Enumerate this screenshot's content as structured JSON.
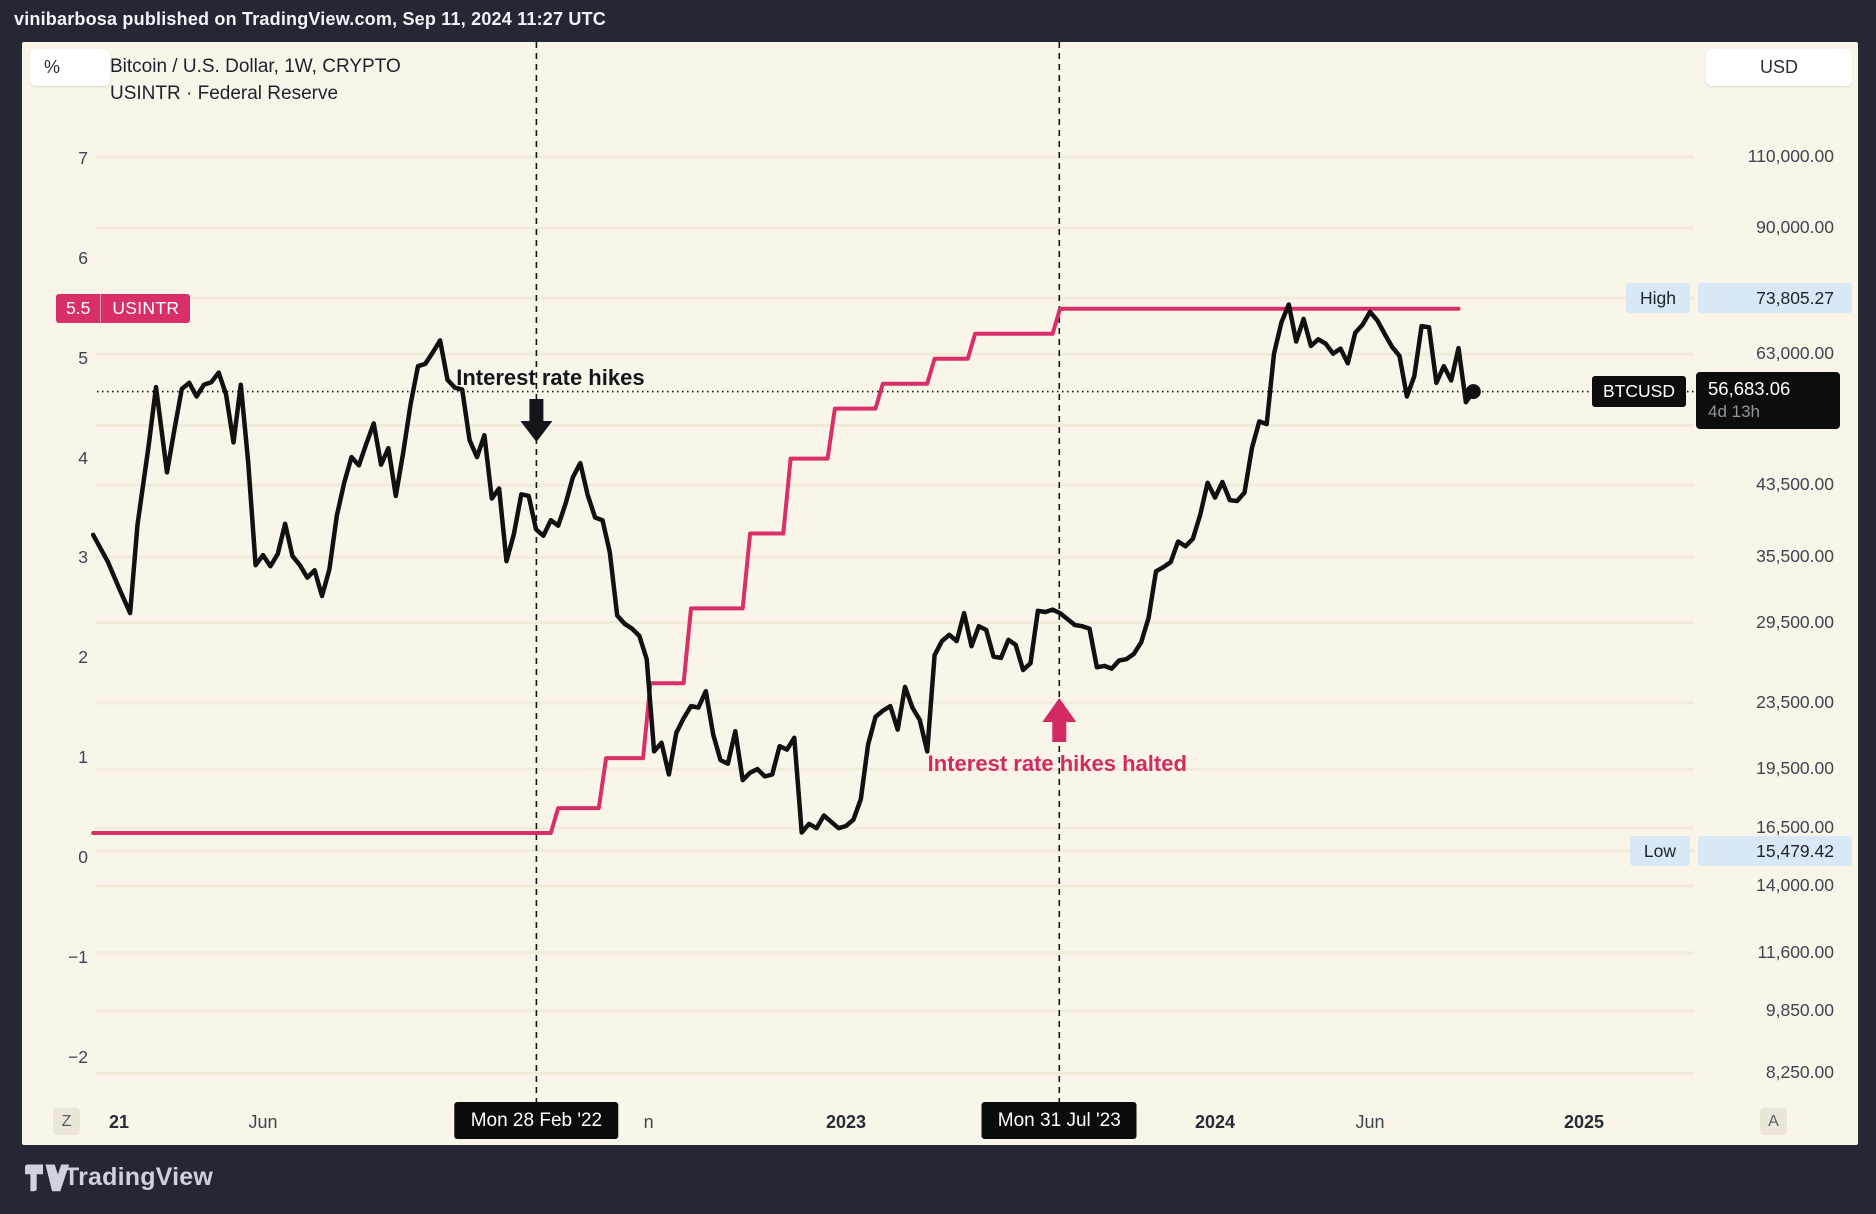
{
  "top_bar": {
    "text": "vinibarbosa published on TradingView.com, Sep 11, 2024 11:27 UTC"
  },
  "header": {
    "unit_left": "%",
    "unit_right": "USD",
    "title_line1": "Bitcoin / U.S. Dollar, 1W, CRYPTO",
    "title_line2": "USINTR · Federal Reserve"
  },
  "badges": {
    "usintr_value": "5.5",
    "usintr_label": "USINTR",
    "high_label": "High",
    "high_value": "73,805.27",
    "low_label": "Low",
    "low_value": "15,479.42",
    "btc_symbol": "BTCUSD",
    "btc_price": "56,683.06",
    "btc_countdown": "4d 13h"
  },
  "annotations": {
    "hikes": "Interest rate hikes",
    "halted": "Interest rate hikes halted"
  },
  "left_axis": {
    "unit": "%",
    "ticks": [
      {
        "label": "7",
        "value": 7
      },
      {
        "label": "6",
        "value": 6
      },
      {
        "label": "5",
        "value": 5
      },
      {
        "label": "4",
        "value": 4
      },
      {
        "label": "3",
        "value": 3
      },
      {
        "label": "2",
        "value": 2
      },
      {
        "label": "1",
        "value": 1
      },
      {
        "label": "0",
        "value": 0
      },
      {
        "label": "−1",
        "value": -1
      },
      {
        "label": "−2",
        "value": -2
      }
    ]
  },
  "right_axis": {
    "unit": "USD",
    "ticks": [
      {
        "label": "110,000.00",
        "value": 110000
      },
      {
        "label": "90,000.00",
        "value": 90000
      },
      {
        "label": "63,000.00",
        "value": 63000
      },
      {
        "label": "43,500.00",
        "value": 43500
      },
      {
        "label": "35,500.00",
        "value": 35500
      },
      {
        "label": "29,500.00",
        "value": 29500
      },
      {
        "label": "23,500.00",
        "value": 23500
      },
      {
        "label": "19,500.00",
        "value": 19500
      },
      {
        "label": "16,500.00",
        "value": 16500
      },
      {
        "label": "14,000.00",
        "value": 14000
      },
      {
        "label": "11,600.00",
        "value": 11600
      },
      {
        "label": "9,850.00",
        "value": 9850
      },
      {
        "label": "8,250.00",
        "value": 8250
      }
    ],
    "hidden_grid_values": [
      51500
    ]
  },
  "time_axis": {
    "left_button": "Z",
    "right_button": "A",
    "labels": [
      {
        "text": "21",
        "t": 2021.03,
        "bold": true
      },
      {
        "text": "Jun",
        "t": 2021.42,
        "bold": false
      },
      {
        "text": "n",
        "t": 2022.465,
        "bold": false
      },
      {
        "text": "2023",
        "t": 2023.0,
        "bold": true
      },
      {
        "text": "2024",
        "t": 2024.0,
        "bold": true
      },
      {
        "text": "Jun",
        "t": 2024.42,
        "bold": false
      },
      {
        "text": "2025",
        "t": 2025.0,
        "bold": true
      }
    ]
  },
  "footer": {
    "brand": "TradingView"
  },
  "colors": {
    "background_dark": "#232834",
    "chart_cream": "#faf5e9",
    "gridline": "#f2ebd9",
    "btc_line": "#111111",
    "rate_pink": "#d92f68",
    "annotation_pink": "#d42a63",
    "highlow_bg": "#d9e8f5",
    "badge_black": "#0d0d0d"
  },
  "chart_data": {
    "type": "line",
    "title": "Bitcoin / U.S. Dollar, 1W, CRYPTO with USINTR · Federal Reserve",
    "x_axis": {
      "label": "time",
      "range_decimal_years": [
        2020.96,
        2025.5
      ]
    },
    "y_left": {
      "label": "%",
      "range": [
        -2.5,
        7.5
      ],
      "scale": "linear"
    },
    "y_right": {
      "label": "USD",
      "scale": "log",
      "visible_range_approx": [
        7000,
        130000
      ]
    },
    "key_levels": {
      "high": 73805.27,
      "low": 15479.42,
      "current_price": 56683.06,
      "current_rate": 5.5
    },
    "events": [
      {
        "t": 2022.161,
        "date_label": "Mon 28 Feb '22",
        "annotation": "Interest rate hikes",
        "arrow": "down",
        "color": "black"
      },
      {
        "t": 2023.578,
        "date_label": "Mon 31 Jul '23",
        "annotation": "Interest rate hikes halted",
        "arrow": "up",
        "color": "pink"
      }
    ],
    "series": [
      {
        "name": "BTCUSD weekly close",
        "color": "#111111",
        "points": [
          [
            2020.96,
            37800
          ],
          [
            2021.0,
            35000
          ],
          [
            2021.03,
            32500
          ],
          [
            2021.06,
            30300
          ],
          [
            2021.08,
            38900
          ],
          [
            2021.11,
            48600
          ],
          [
            2021.13,
            57400
          ],
          [
            2021.16,
            45100
          ],
          [
            2021.18,
            50900
          ],
          [
            2021.2,
            57100
          ],
          [
            2021.22,
            58100
          ],
          [
            2021.24,
            55900
          ],
          [
            2021.26,
            57800
          ],
          [
            2021.28,
            58200
          ],
          [
            2021.3,
            59800
          ],
          [
            2021.32,
            56200
          ],
          [
            2021.34,
            49100
          ],
          [
            2021.36,
            57800
          ],
          [
            2021.38,
            46400
          ],
          [
            2021.4,
            34700
          ],
          [
            2021.42,
            35700
          ],
          [
            2021.44,
            34600
          ],
          [
            2021.46,
            35800
          ],
          [
            2021.48,
            39000
          ],
          [
            2021.5,
            35600
          ],
          [
            2021.52,
            34700
          ],
          [
            2021.54,
            33500
          ],
          [
            2021.56,
            34200
          ],
          [
            2021.58,
            31800
          ],
          [
            2021.6,
            34300
          ],
          [
            2021.62,
            39900
          ],
          [
            2021.64,
            43800
          ],
          [
            2021.66,
            47100
          ],
          [
            2021.68,
            46000
          ],
          [
            2021.7,
            48900
          ],
          [
            2021.72,
            51800
          ],
          [
            2021.74,
            46100
          ],
          [
            2021.76,
            48300
          ],
          [
            2021.78,
            42200
          ],
          [
            2021.8,
            47700
          ],
          [
            2021.82,
            54700
          ],
          [
            2021.84,
            60900
          ],
          [
            2021.86,
            61300
          ],
          [
            2021.88,
            63300
          ],
          [
            2021.9,
            65500
          ],
          [
            2021.92,
            58600
          ],
          [
            2021.94,
            57300
          ],
          [
            2021.96,
            57000
          ],
          [
            2021.98,
            49400
          ],
          [
            2022.0,
            47100
          ],
          [
            2022.02,
            50100
          ],
          [
            2022.04,
            41900
          ],
          [
            2022.06,
            43100
          ],
          [
            2022.08,
            35100
          ],
          [
            2022.1,
            37900
          ],
          [
            2022.12,
            42400
          ],
          [
            2022.14,
            42200
          ],
          [
            2022.16,
            38400
          ],
          [
            2022.18,
            37700
          ],
          [
            2022.2,
            39400
          ],
          [
            2022.22,
            38800
          ],
          [
            2022.24,
            41300
          ],
          [
            2022.26,
            44500
          ],
          [
            2022.28,
            46300
          ],
          [
            2022.3,
            42300
          ],
          [
            2022.32,
            39700
          ],
          [
            2022.34,
            39400
          ],
          [
            2022.36,
            36000
          ],
          [
            2022.38,
            30100
          ],
          [
            2022.4,
            29400
          ],
          [
            2022.42,
            29000
          ],
          [
            2022.44,
            28400
          ],
          [
            2022.46,
            26600
          ],
          [
            2022.48,
            20500
          ],
          [
            2022.5,
            21000
          ],
          [
            2022.52,
            19200
          ],
          [
            2022.54,
            21600
          ],
          [
            2022.56,
            22500
          ],
          [
            2022.58,
            23300
          ],
          [
            2022.6,
            23200
          ],
          [
            2022.62,
            24300
          ],
          [
            2022.64,
            21500
          ],
          [
            2022.66,
            20000
          ],
          [
            2022.68,
            19800
          ],
          [
            2022.7,
            21700
          ],
          [
            2022.72,
            18900
          ],
          [
            2022.74,
            19300
          ],
          [
            2022.76,
            19500
          ],
          [
            2022.78,
            19100
          ],
          [
            2022.8,
            19200
          ],
          [
            2022.82,
            20800
          ],
          [
            2022.84,
            20600
          ],
          [
            2022.86,
            21300
          ],
          [
            2022.88,
            16300
          ],
          [
            2022.9,
            16700
          ],
          [
            2022.92,
            16500
          ],
          [
            2022.94,
            17100
          ],
          [
            2022.96,
            16800
          ],
          [
            2022.98,
            16500
          ],
          [
            2023.0,
            16600
          ],
          [
            2023.02,
            16900
          ],
          [
            2023.04,
            17900
          ],
          [
            2023.06,
            20900
          ],
          [
            2023.08,
            22600
          ],
          [
            2023.1,
            23000
          ],
          [
            2023.12,
            23300
          ],
          [
            2023.14,
            21800
          ],
          [
            2023.16,
            24600
          ],
          [
            2023.18,
            23200
          ],
          [
            2023.2,
            22400
          ],
          [
            2023.22,
            20500
          ],
          [
            2023.24,
            26900
          ],
          [
            2023.26,
            28000
          ],
          [
            2023.28,
            28500
          ],
          [
            2023.3,
            28000
          ],
          [
            2023.32,
            30300
          ],
          [
            2023.34,
            27600
          ],
          [
            2023.36,
            29200
          ],
          [
            2023.38,
            28900
          ],
          [
            2023.4,
            26800
          ],
          [
            2023.42,
            26700
          ],
          [
            2023.44,
            28100
          ],
          [
            2023.46,
            27700
          ],
          [
            2023.48,
            25800
          ],
          [
            2023.5,
            26300
          ],
          [
            2023.52,
            30500
          ],
          [
            2023.54,
            30400
          ],
          [
            2023.56,
            30600
          ],
          [
            2023.58,
            30300
          ],
          [
            2023.6,
            29800
          ],
          [
            2023.62,
            29300
          ],
          [
            2023.64,
            29200
          ],
          [
            2023.66,
            29000
          ],
          [
            2023.68,
            26000
          ],
          [
            2023.7,
            26100
          ],
          [
            2023.72,
            25900
          ],
          [
            2023.74,
            26500
          ],
          [
            2023.76,
            26600
          ],
          [
            2023.78,
            27000
          ],
          [
            2023.8,
            27900
          ],
          [
            2023.82,
            29900
          ],
          [
            2023.84,
            34100
          ],
          [
            2023.86,
            34500
          ],
          [
            2023.88,
            35000
          ],
          [
            2023.9,
            37100
          ],
          [
            2023.92,
            36600
          ],
          [
            2023.94,
            37400
          ],
          [
            2023.96,
            40000
          ],
          [
            2023.98,
            43800
          ],
          [
            2024.0,
            42000
          ],
          [
            2024.02,
            43900
          ],
          [
            2024.04,
            41700
          ],
          [
            2024.06,
            41600
          ],
          [
            2024.08,
            42600
          ],
          [
            2024.1,
            48300
          ],
          [
            2024.12,
            52100
          ],
          [
            2024.14,
            51700
          ],
          [
            2024.16,
            63100
          ],
          [
            2024.18,
            68900
          ],
          [
            2024.2,
            72500
          ],
          [
            2024.22,
            65300
          ],
          [
            2024.24,
            69600
          ],
          [
            2024.26,
            64500
          ],
          [
            2024.28,
            65700
          ],
          [
            2024.3,
            64900
          ],
          [
            2024.32,
            63100
          ],
          [
            2024.34,
            64000
          ],
          [
            2024.36,
            61400
          ],
          [
            2024.38,
            66900
          ],
          [
            2024.4,
            68500
          ],
          [
            2024.42,
            71000
          ],
          [
            2024.44,
            69300
          ],
          [
            2024.46,
            66700
          ],
          [
            2024.48,
            64300
          ],
          [
            2024.5,
            62700
          ],
          [
            2024.52,
            55900
          ],
          [
            2024.54,
            59200
          ],
          [
            2024.56,
            68200
          ],
          [
            2024.58,
            68000
          ],
          [
            2024.6,
            58100
          ],
          [
            2024.62,
            60900
          ],
          [
            2024.64,
            58500
          ],
          [
            2024.66,
            64100
          ],
          [
            2024.68,
            55000
          ],
          [
            2024.7,
            56683
          ]
        ]
      },
      {
        "name": "USINTR (Federal Reserve interest rate, %)",
        "color": "#d92f68",
        "points": [
          [
            2020.96,
            0.25
          ],
          [
            2022.2,
            0.25
          ],
          [
            2022.22,
            0.5
          ],
          [
            2022.33,
            0.5
          ],
          [
            2022.35,
            1.0
          ],
          [
            2022.45,
            1.0
          ],
          [
            2022.47,
            1.75
          ],
          [
            2022.56,
            1.75
          ],
          [
            2022.58,
            2.5
          ],
          [
            2022.72,
            2.5
          ],
          [
            2022.74,
            3.25
          ],
          [
            2022.83,
            3.25
          ],
          [
            2022.85,
            4.0
          ],
          [
            2022.95,
            4.0
          ],
          [
            2022.97,
            4.5
          ],
          [
            2023.08,
            4.5
          ],
          [
            2023.1,
            4.75
          ],
          [
            2023.22,
            4.75
          ],
          [
            2023.24,
            5.0
          ],
          [
            2023.33,
            5.0
          ],
          [
            2023.35,
            5.25
          ],
          [
            2023.56,
            5.25
          ],
          [
            2023.58,
            5.5
          ],
          [
            2024.66,
            5.5
          ]
        ]
      }
    ]
  }
}
